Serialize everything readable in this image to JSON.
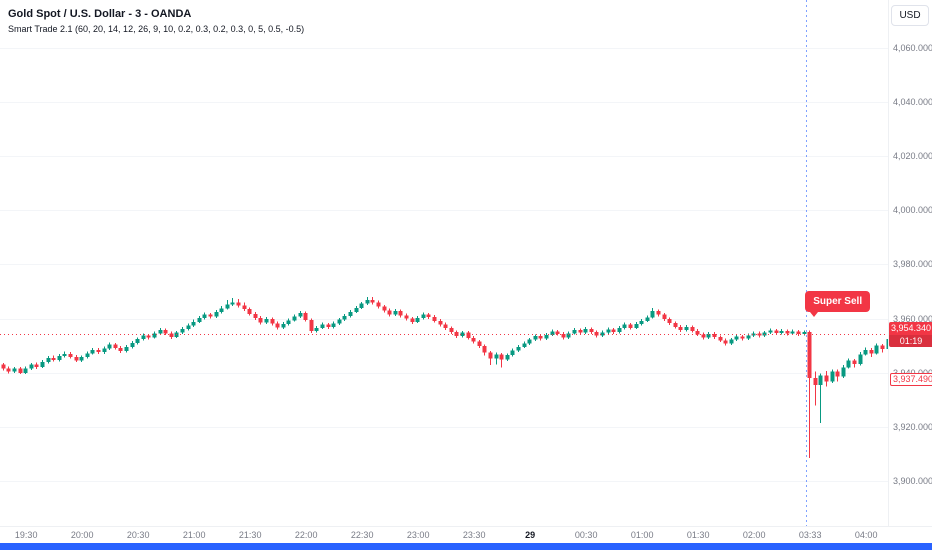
{
  "header": {
    "symbol_title": "Gold Spot / U.S. Dollar - 3 - OANDA",
    "indicator_line": "Smart Trade 2.1 (60, 20, 14, 12, 26, 9, 10, 0.2, 0.3, 0.2, 0.3, 0, 5, 0.5, -0.5)"
  },
  "toolbar": {
    "currency_label": "USD"
  },
  "price_badges": {
    "last_price": "3,954.340",
    "countdown": "01:19",
    "alert_price": "3,937.490"
  },
  "colors": {
    "up": "#089981",
    "down": "#f23645",
    "accent": "#2962ff",
    "axis_text": "#787b86",
    "grid": "#f3f5f8",
    "text": "#131722"
  },
  "chart_data": {
    "type": "candlestick",
    "title": "Gold Spot / U.S. Dollar",
    "exchange": "OANDA",
    "interval_minutes": 3,
    "quote_currency": "USD",
    "last_price": 3954.34,
    "alert_price": 3937.49,
    "y_range": [
      3883.4,
      4077.7
    ],
    "event": {
      "index": 144,
      "label": "Super Sell"
    },
    "price_ticks": [
      {
        "value": 4060,
        "label": "4,060.000"
      },
      {
        "value": 4040,
        "label": "4,040.000"
      },
      {
        "value": 4020,
        "label": "4,020.000"
      },
      {
        "value": 4000,
        "label": "4,000.000"
      },
      {
        "value": 3980,
        "label": "3,980.000"
      },
      {
        "value": 3960,
        "label": "3,960.000"
      },
      {
        "value": 3940,
        "label": "3,940.000"
      },
      {
        "value": 3920,
        "label": "3,920.000"
      },
      {
        "value": 3900,
        "label": "3,900.000"
      }
    ],
    "time_ticks": [
      {
        "index": 4,
        "label": "19:30"
      },
      {
        "index": 14,
        "label": "20:00"
      },
      {
        "index": 24,
        "label": "20:30"
      },
      {
        "index": 34,
        "label": "21:00"
      },
      {
        "index": 44,
        "label": "21:30"
      },
      {
        "index": 54,
        "label": "22:00"
      },
      {
        "index": 64,
        "label": "22:30"
      },
      {
        "index": 74,
        "label": "23:00"
      },
      {
        "index": 84,
        "label": "23:30"
      },
      {
        "index": 94,
        "label": "29",
        "day_change": true
      },
      {
        "index": 104,
        "label": "00:30"
      },
      {
        "index": 114,
        "label": "01:00"
      },
      {
        "index": 124,
        "label": "01:30"
      },
      {
        "index": 134,
        "label": "02:00"
      },
      {
        "index": 144,
        "label": "03:33"
      },
      {
        "index": 154,
        "label": "04:00"
      }
    ],
    "candles": [
      [
        3943.0,
        3943.6,
        3940.9,
        3941.6
      ],
      [
        3941.6,
        3942.4,
        3939.8,
        3940.5
      ],
      [
        3940.5,
        3942.2,
        3939.9,
        3941.5
      ],
      [
        3941.5,
        3942.1,
        3939.6,
        3940.0
      ],
      [
        3940.0,
        3942.3,
        3939.5,
        3941.5
      ],
      [
        3941.5,
        3943.6,
        3941.0,
        3943.0
      ],
      [
        3943.0,
        3943.8,
        3941.4,
        3942.2
      ],
      [
        3942.2,
        3944.7,
        3941.8,
        3944.0
      ],
      [
        3944.0,
        3946.2,
        3943.5,
        3945.5
      ],
      [
        3945.5,
        3946.3,
        3944.1,
        3944.8
      ],
      [
        3944.8,
        3946.9,
        3944.2,
        3946.2
      ],
      [
        3946.2,
        3947.8,
        3945.7,
        3947.0
      ],
      [
        3947.0,
        3947.6,
        3945.2,
        3945.9
      ],
      [
        3945.9,
        3946.5,
        3943.9,
        3944.6
      ],
      [
        3944.6,
        3946.4,
        3944.0,
        3945.8
      ],
      [
        3945.8,
        3947.9,
        3945.3,
        3947.2
      ],
      [
        3947.2,
        3949.1,
        3946.7,
        3948.5
      ],
      [
        3948.5,
        3949.2,
        3946.9,
        3947.6
      ],
      [
        3947.6,
        3949.7,
        3947.0,
        3949.0
      ],
      [
        3949.0,
        3951.1,
        3948.5,
        3950.4
      ],
      [
        3950.4,
        3951.0,
        3948.6,
        3949.2
      ],
      [
        3949.2,
        3949.9,
        3947.3,
        3948.0
      ],
      [
        3948.0,
        3950.2,
        3947.5,
        3949.5
      ],
      [
        3949.5,
        3951.7,
        3949.0,
        3951.0
      ],
      [
        3951.0,
        3953.1,
        3950.5,
        3952.4
      ],
      [
        3952.4,
        3954.5,
        3951.9,
        3953.8
      ],
      [
        3953.8,
        3954.4,
        3952.3,
        3953.0
      ],
      [
        3953.0,
        3955.2,
        3952.6,
        3954.5
      ],
      [
        3954.5,
        3956.6,
        3954.0,
        3955.8
      ],
      [
        3955.8,
        3956.4,
        3953.9,
        3954.6
      ],
      [
        3954.6,
        3955.2,
        3952.5,
        3953.2
      ],
      [
        3953.2,
        3955.5,
        3952.8,
        3954.8
      ],
      [
        3954.8,
        3957.0,
        3954.3,
        3956.2
      ],
      [
        3956.2,
        3958.2,
        3955.7,
        3957.5
      ],
      [
        3957.5,
        3959.6,
        3957.0,
        3958.8
      ],
      [
        3958.8,
        3961.0,
        3958.3,
        3960.2
      ],
      [
        3960.2,
        3962.3,
        3959.7,
        3961.5
      ],
      [
        3961.5,
        3962.1,
        3960.0,
        3960.8
      ],
      [
        3960.8,
        3963.2,
        3960.3,
        3962.4
      ],
      [
        3962.4,
        3964.6,
        3961.9,
        3963.8
      ],
      [
        3963.8,
        3966.9,
        3963.3,
        3965.2
      ],
      [
        3965.2,
        3967.6,
        3964.7,
        3966.0
      ],
      [
        3966.0,
        3967.2,
        3964.1,
        3964.8
      ],
      [
        3964.8,
        3965.9,
        3962.8,
        3963.5
      ],
      [
        3963.5,
        3964.2,
        3961.1,
        3961.8
      ],
      [
        3961.8,
        3962.5,
        3959.5,
        3960.2
      ],
      [
        3960.2,
        3960.9,
        3957.9,
        3958.6
      ],
      [
        3958.6,
        3960.6,
        3958.0,
        3959.8
      ],
      [
        3959.8,
        3960.4,
        3957.5,
        3958.2
      ],
      [
        3958.2,
        3958.9,
        3956.0,
        3956.8
      ],
      [
        3956.8,
        3958.8,
        3956.2,
        3958.0
      ],
      [
        3958.0,
        3960.1,
        3957.5,
        3959.4
      ],
      [
        3959.4,
        3961.5,
        3958.9,
        3960.8
      ],
      [
        3960.8,
        3962.8,
        3960.3,
        3962.0
      ],
      [
        3962.0,
        3962.6,
        3958.9,
        3959.5
      ],
      [
        3959.5,
        3960.0,
        3954.7,
        3955.4
      ],
      [
        3955.4,
        3957.3,
        3954.8,
        3956.6
      ],
      [
        3956.6,
        3958.5,
        3956.1,
        3957.8
      ],
      [
        3957.8,
        3958.4,
        3956.2,
        3956.9
      ],
      [
        3956.9,
        3958.9,
        3956.4,
        3958.2
      ],
      [
        3958.2,
        3960.3,
        3957.7,
        3959.6
      ],
      [
        3959.6,
        3961.7,
        3959.1,
        3961.0
      ],
      [
        3961.0,
        3963.2,
        3960.5,
        3962.5
      ],
      [
        3962.5,
        3964.7,
        3962.0,
        3964.0
      ],
      [
        3964.0,
        3966.2,
        3963.5,
        3965.5
      ],
      [
        3965.5,
        3968.0,
        3965.0,
        3966.8
      ],
      [
        3966.8,
        3967.9,
        3965.3,
        3966.0
      ],
      [
        3966.0,
        3966.7,
        3963.8,
        3964.5
      ],
      [
        3964.5,
        3965.1,
        3962.3,
        3963.0
      ],
      [
        3963.0,
        3963.7,
        3960.8,
        3961.5
      ],
      [
        3961.5,
        3963.5,
        3961.0,
        3962.8
      ],
      [
        3962.8,
        3963.4,
        3960.5,
        3961.2
      ],
      [
        3961.2,
        3961.9,
        3959.3,
        3960.0
      ],
      [
        3960.0,
        3960.6,
        3958.1,
        3958.8
      ],
      [
        3958.8,
        3960.9,
        3958.3,
        3960.2
      ],
      [
        3960.2,
        3962.2,
        3959.7,
        3961.5
      ],
      [
        3961.5,
        3962.1,
        3959.9,
        3960.6
      ],
      [
        3960.6,
        3961.3,
        3958.5,
        3959.2
      ],
      [
        3959.2,
        3959.8,
        3957.1,
        3957.8
      ],
      [
        3957.8,
        3958.5,
        3955.8,
        3956.5
      ],
      [
        3956.5,
        3957.1,
        3954.3,
        3955.0
      ],
      [
        3955.0,
        3955.7,
        3952.9,
        3953.6
      ],
      [
        3953.6,
        3955.5,
        3953.0,
        3954.8
      ],
      [
        3954.8,
        3955.4,
        3952.2,
        3952.9
      ],
      [
        3952.9,
        3953.5,
        3950.8,
        3951.5
      ],
      [
        3951.5,
        3952.1,
        3949.1,
        3949.8
      ],
      [
        3949.8,
        3950.4,
        3946.3,
        3947.5
      ],
      [
        3947.5,
        3948.1,
        3942.8,
        3945.2
      ],
      [
        3945.2,
        3947.4,
        3943.0,
        3946.8
      ],
      [
        3946.8,
        3947.3,
        3941.9,
        3944.9
      ],
      [
        3944.9,
        3947.2,
        3944.3,
        3946.5
      ],
      [
        3946.5,
        3948.9,
        3946.0,
        3948.2
      ],
      [
        3948.2,
        3950.3,
        3947.7,
        3949.6
      ],
      [
        3949.6,
        3951.5,
        3949.1,
        3950.8
      ],
      [
        3950.8,
        3952.9,
        3950.3,
        3952.2
      ],
      [
        3952.2,
        3954.2,
        3951.7,
        3953.5
      ],
      [
        3953.5,
        3954.1,
        3951.9,
        3952.6
      ],
      [
        3952.6,
        3954.7,
        3952.1,
        3954.0
      ],
      [
        3954.0,
        3955.9,
        3953.5,
        3955.2
      ],
      [
        3955.2,
        3955.8,
        3953.7,
        3954.4
      ],
      [
        3954.4,
        3955.0,
        3952.3,
        3953.0
      ],
      [
        3953.0,
        3955.3,
        3952.5,
        3954.6
      ],
      [
        3954.6,
        3956.5,
        3954.1,
        3955.8
      ],
      [
        3955.8,
        3956.4,
        3954.2,
        3954.9
      ],
      [
        3954.9,
        3956.9,
        3954.4,
        3956.2
      ],
      [
        3956.2,
        3956.8,
        3954.3,
        3955.0
      ],
      [
        3955.0,
        3955.6,
        3953.1,
        3953.8
      ],
      [
        3953.8,
        3955.6,
        3953.3,
        3954.9
      ],
      [
        3954.9,
        3956.7,
        3954.4,
        3956.0
      ],
      [
        3956.0,
        3956.6,
        3954.4,
        3955.1
      ],
      [
        3955.1,
        3957.2,
        3954.6,
        3956.5
      ],
      [
        3956.5,
        3958.5,
        3956.0,
        3957.8
      ],
      [
        3957.8,
        3958.4,
        3955.9,
        3956.6
      ],
      [
        3956.6,
        3958.7,
        3956.1,
        3958.0
      ],
      [
        3958.0,
        3959.9,
        3957.5,
        3959.2
      ],
      [
        3959.2,
        3961.2,
        3958.7,
        3960.5
      ],
      [
        3960.5,
        3963.9,
        3960.0,
        3962.8
      ],
      [
        3962.8,
        3963.4,
        3960.8,
        3961.5
      ],
      [
        3961.5,
        3962.1,
        3959.1,
        3959.8
      ],
      [
        3959.8,
        3960.4,
        3957.7,
        3958.4
      ],
      [
        3958.4,
        3959.0,
        3956.3,
        3957.0
      ],
      [
        3957.0,
        3957.6,
        3955.1,
        3955.8
      ],
      [
        3955.8,
        3957.6,
        3955.3,
        3956.9
      ],
      [
        3956.9,
        3957.5,
        3954.8,
        3955.5
      ],
      [
        3955.5,
        3956.1,
        3953.5,
        3954.2
      ],
      [
        3954.2,
        3954.8,
        3952.3,
        3953.0
      ],
      [
        3953.0,
        3955.1,
        3952.5,
        3954.4
      ],
      [
        3954.4,
        3955.0,
        3952.5,
        3953.2
      ],
      [
        3953.2,
        3953.8,
        3951.3,
        3952.0
      ],
      [
        3952.0,
        3952.6,
        3950.1,
        3950.8
      ],
      [
        3950.8,
        3952.9,
        3950.3,
        3952.2
      ],
      [
        3952.2,
        3954.1,
        3951.7,
        3953.4
      ],
      [
        3953.4,
        3954.0,
        3951.9,
        3952.6
      ],
      [
        3952.6,
        3954.5,
        3952.1,
        3953.8
      ],
      [
        3953.8,
        3955.3,
        3953.3,
        3954.6
      ],
      [
        3954.6,
        3955.2,
        3953.1,
        3953.8
      ],
      [
        3953.8,
        3955.5,
        3953.3,
        3954.8
      ],
      [
        3954.8,
        3956.3,
        3954.3,
        3955.6
      ],
      [
        3955.6,
        3956.2,
        3954.0,
        3954.7
      ],
      [
        3954.7,
        3956.1,
        3954.2,
        3955.4
      ],
      [
        3955.4,
        3956.0,
        3953.8,
        3954.5
      ],
      [
        3954.5,
        3955.9,
        3954.0,
        3955.2
      ],
      [
        3955.2,
        3955.8,
        3953.6,
        3954.3
      ],
      [
        3954.3,
        3955.7,
        3953.8,
        3955.0
      ],
      [
        3955.0,
        3955.6,
        3908.5,
        3938.0
      ],
      [
        3938.0,
        3940.5,
        3928.0,
        3935.5
      ],
      [
        3935.5,
        3939.8,
        3921.5,
        3939.0
      ],
      [
        3939.0,
        3940.6,
        3934.9,
        3936.8
      ],
      [
        3936.8,
        3941.3,
        3936.2,
        3940.5
      ],
      [
        3940.5,
        3941.2,
        3936.7,
        3938.6
      ],
      [
        3938.6,
        3942.8,
        3938.0,
        3942.0
      ],
      [
        3942.0,
        3945.3,
        3941.5,
        3944.5
      ],
      [
        3944.5,
        3945.1,
        3941.9,
        3943.2
      ],
      [
        3943.2,
        3947.6,
        3942.7,
        3946.8
      ],
      [
        3946.8,
        3949.3,
        3946.3,
        3948.5
      ],
      [
        3948.5,
        3949.1,
        3945.9,
        3947.2
      ],
      [
        3947.2,
        3950.8,
        3946.7,
        3950.0
      ],
      [
        3950.0,
        3950.6,
        3947.5,
        3948.8
      ],
      [
        3948.8,
        3953.2,
        3948.3,
        3952.4
      ],
      [
        3952.4,
        3954.9,
        3951.8,
        3954.34
      ]
    ]
  }
}
